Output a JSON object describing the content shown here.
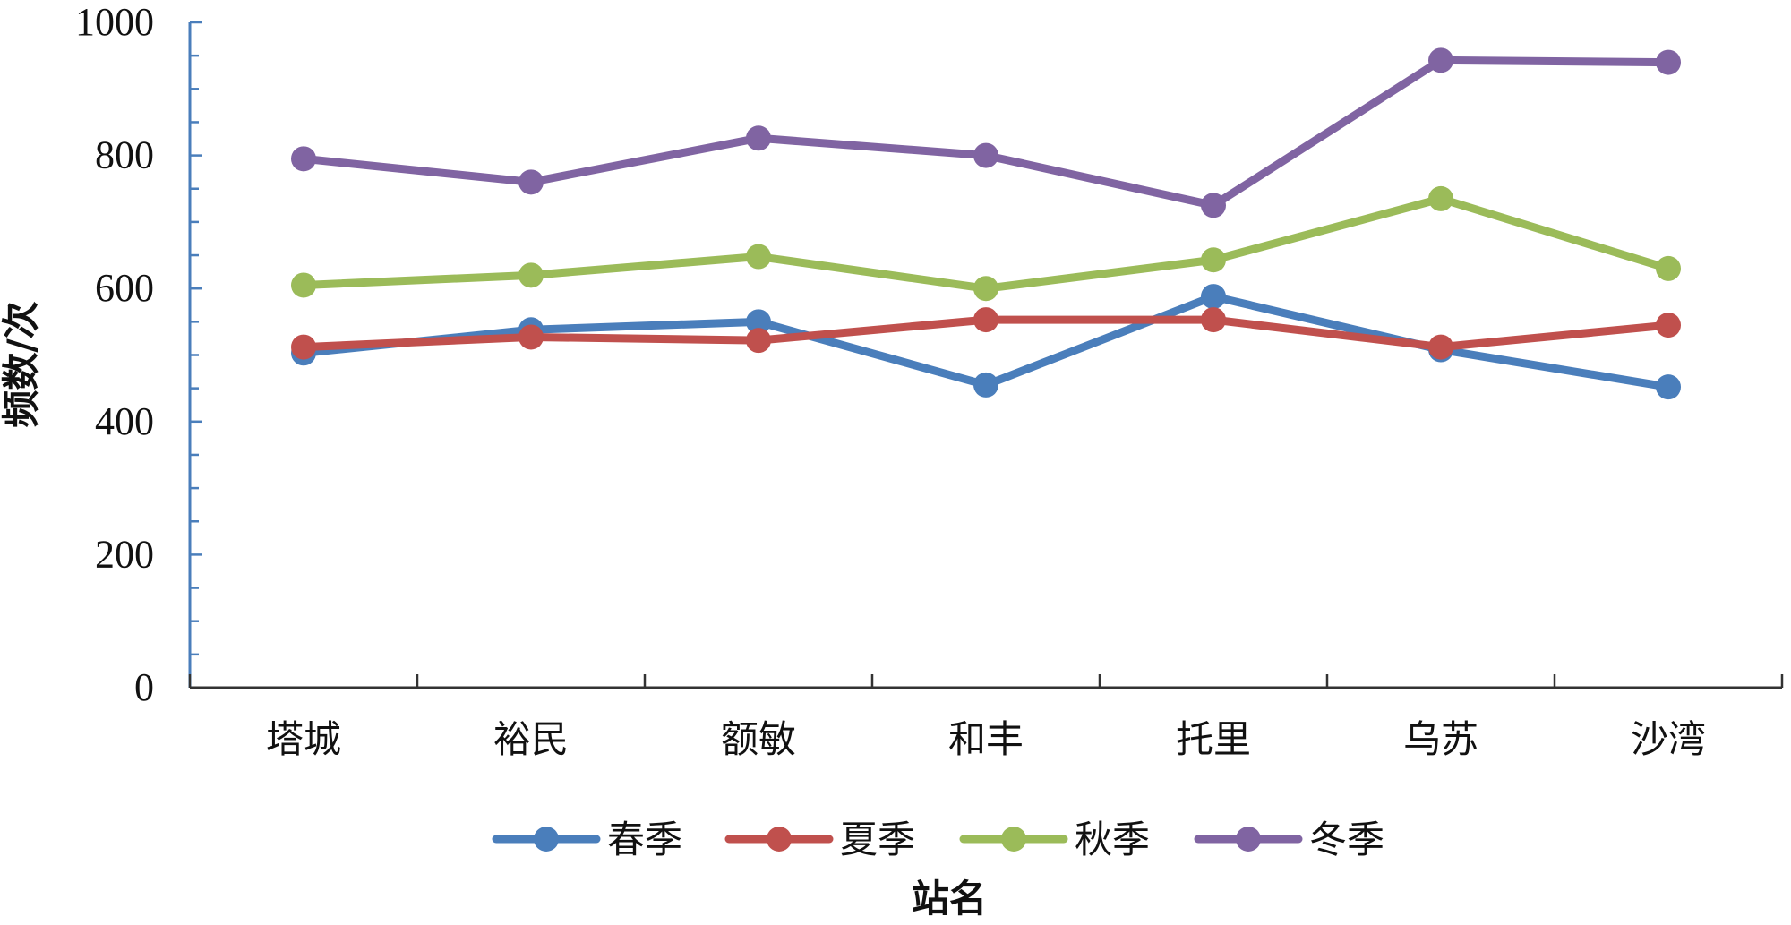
{
  "chart_data": {
    "type": "line",
    "title": "",
    "xlabel": "站名",
    "ylabel": "频数/次",
    "ylim": [
      0,
      1000
    ],
    "yticks": [
      0,
      200,
      400,
      600,
      800,
      1000
    ],
    "grid": false,
    "legend_position": "bottom",
    "categories": [
      "塔城",
      "裕民",
      "额敏",
      "和丰",
      "托里",
      "乌苏",
      "沙湾"
    ],
    "series": [
      {
        "name": "春季",
        "color": "#4a7ebb",
        "values": [
          503,
          538,
          550,
          455,
          588,
          508,
          452
        ]
      },
      {
        "name": "夏季",
        "color": "#c0504d",
        "values": [
          512,
          527,
          522,
          553,
          553,
          512,
          545
        ]
      },
      {
        "name": "秋季",
        "color": "#9bbb59",
        "values": [
          605,
          620,
          648,
          600,
          643,
          735,
          630
        ]
      },
      {
        "name": "冬季",
        "color": "#8064a2",
        "values": [
          795,
          760,
          826,
          800,
          725,
          943,
          940
        ]
      }
    ],
    "axis_color": "#4a7ebb"
  }
}
